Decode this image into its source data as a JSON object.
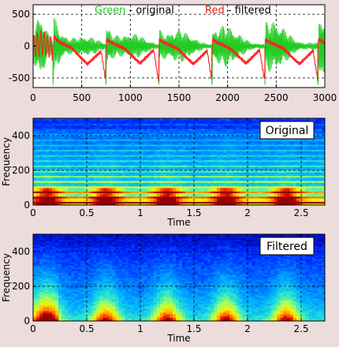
{
  "background": "#ecdcdc",
  "chart_data": [
    {
      "type": "line",
      "title": "",
      "xlabel": "",
      "ylabel": "",
      "xlim": [
        0,
        3000
      ],
      "ylim": [
        -650,
        650
      ],
      "xticks": [
        0,
        500,
        1000,
        1500,
        2000,
        2500,
        3000
      ],
      "yticks": [
        500,
        0,
        -500
      ],
      "xtick_labels": [
        "0",
        "500",
        "1000",
        "1500",
        "2000",
        "2500",
        "3000"
      ],
      "ytick_labels": [
        "500",
        "0",
        "-500"
      ],
      "grid": "dashed",
      "legend_text": [
        {
          "word": "Green",
          "rest": " - original",
          "color": "#22cc22"
        },
        {
          "word": "Red",
          "rest": " - filtered",
          "color": "#dd2222"
        }
      ],
      "legend_position": "top",
      "pitch_period_samples": 545,
      "pulse_positions": [
        205,
        750,
        1295,
        1840,
        2385,
        2930
      ],
      "series": [
        {
          "color": "#22cc22",
          "description_note": "original: high-frequency oscillation, amplitude up to ~600, with pitch pulses",
          "amplitude_range": [
            -620,
            610
          ]
        },
        {
          "color": "#ff2222",
          "description_note": "filtered: low-frequency glottal waveform, range about -550 to 450",
          "amplitude_range": [
            -550,
            450
          ],
          "values_x": [
            0,
            100,
            150,
            205,
            215,
            260,
            400,
            500,
            560,
            700,
            745,
            752,
            800,
            940,
            1050,
            1100,
            1240,
            1290,
            1298,
            1345,
            1490,
            1590,
            1650,
            1790,
            1835,
            1843,
            1890,
            2030,
            2140,
            2190,
            2330,
            2380,
            2388,
            2435,
            2580,
            2680,
            2740,
            2880,
            2925,
            2933,
            3000
          ],
          "values_y": [
            0,
            60,
            0,
            -50,
            150,
            70,
            -30,
            -200,
            -280,
            -80,
            -530,
            100,
            60,
            -40,
            -200,
            -270,
            -60,
            -540,
            100,
            60,
            -40,
            -200,
            -280,
            -70,
            -520,
            110,
            60,
            -40,
            -200,
            -270,
            -60,
            -540,
            100,
            60,
            -40,
            -200,
            -280,
            -70,
            -520,
            110,
            40
          ]
        }
      ]
    },
    {
      "type": "heatmap",
      "title": "",
      "label_box": "Original",
      "xlabel": "Time",
      "ylabel": "Frequency",
      "xlim": [
        0,
        2.72
      ],
      "ylim": [
        0,
        500
      ],
      "xticks": [
        0,
        0.5,
        1,
        1.5,
        2,
        2.5
      ],
      "xtick_labels": [
        "0",
        "0.5",
        "1",
        "1.5",
        "2",
        "2.5"
      ],
      "yticks": [
        0,
        200,
        400
      ],
      "ytick_labels": [
        "0",
        "200",
        "400"
      ],
      "grid": "dashed",
      "harmonic_spacing": 30,
      "pulse_times": [
        0.13,
        0.68,
        1.25,
        1.8,
        2.36
      ]
    },
    {
      "type": "heatmap",
      "title": "",
      "label_box": "Filtered",
      "xlabel": "Time",
      "ylabel": "Frequency",
      "xlim": [
        0,
        2.72
      ],
      "ylim": [
        0,
        500
      ],
      "xticks": [
        0,
        0.5,
        1,
        1.5,
        2,
        2.5
      ],
      "xtick_labels": [
        "0",
        "0.5",
        "1",
        "1.5",
        "2",
        "2.5"
      ],
      "yticks": [
        0,
        200,
        400
      ],
      "ytick_labels": [
        "0",
        "200",
        "400"
      ],
      "grid": "dashed",
      "pulse_times": [
        0.13,
        0.68,
        1.25,
        1.8,
        2.36
      ]
    }
  ]
}
